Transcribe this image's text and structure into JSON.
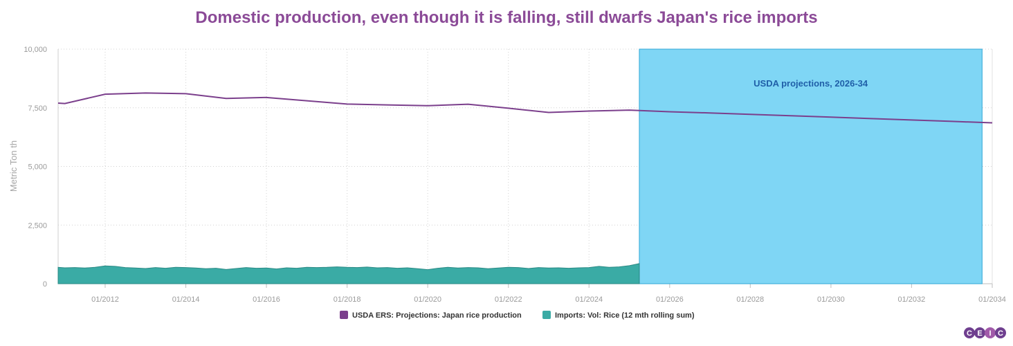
{
  "chart_data": {
    "type": "area",
    "title": "Domestic production, even though it is falling, still dwarfs Japan's rice imports",
    "ylabel": "Metric Ton th",
    "xlabel": "",
    "xlim": [
      "2010-11-01",
      "2034-01-01"
    ],
    "ylim": [
      0,
      10000
    ],
    "y_ticks": [
      0,
      2500,
      5000,
      7500,
      10000
    ],
    "y_tick_labels": [
      "0",
      "2,500",
      "5,000",
      "7,500",
      "10,000"
    ],
    "x_ticks": [
      "2012-01-01",
      "2014-01-01",
      "2016-01-01",
      "2018-01-01",
      "2020-01-01",
      "2022-01-01",
      "2024-01-01",
      "2026-01-01",
      "2028-01-01",
      "2030-01-01",
      "2032-01-01",
      "2034-01-01"
    ],
    "x_tick_labels": [
      "01/2012",
      "01/2014",
      "01/2016",
      "01/2018",
      "01/2020",
      "01/2022",
      "01/2024",
      "01/2026",
      "01/2028",
      "01/2030",
      "01/2032",
      "01/2034"
    ],
    "grid": true,
    "legend_placement": "bottom",
    "series": [
      {
        "name": "USDA ERS: Projections: Japan rice production",
        "type": "line",
        "color": "#7b3f8c",
        "x": [
          "2010-11-01",
          "2011-01-01",
          "2012-01-01",
          "2013-01-01",
          "2014-01-01",
          "2015-01-01",
          "2016-01-01",
          "2017-01-01",
          "2018-01-01",
          "2019-01-01",
          "2020-01-01",
          "2021-01-01",
          "2022-01-01",
          "2023-01-01",
          "2024-01-01",
          "2025-01-01",
          "2026-01-01",
          "2027-01-01",
          "2028-01-01",
          "2029-01-01",
          "2030-01-01",
          "2031-01-01",
          "2032-01-01",
          "2033-01-01",
          "2034-01-01"
        ],
        "values": [
          7700,
          7680,
          8080,
          8130,
          8100,
          7900,
          7940,
          7800,
          7660,
          7620,
          7590,
          7650,
          7480,
          7300,
          7360,
          7400,
          7330,
          7280,
          7220,
          7160,
          7100,
          7040,
          6980,
          6920,
          6860
        ]
      },
      {
        "name": "Imports: Vol: Rice (12 mth rolling sum)",
        "type": "area",
        "color": "#3aaba5",
        "x": [
          "2010-11-01",
          "2011-01-01",
          "2011-04-01",
          "2011-07-01",
          "2011-10-01",
          "2012-01-01",
          "2012-04-01",
          "2012-07-01",
          "2012-10-01",
          "2013-01-01",
          "2013-04-01",
          "2013-07-01",
          "2013-10-01",
          "2014-01-01",
          "2014-04-01",
          "2014-07-01",
          "2014-10-01",
          "2015-01-01",
          "2015-04-01",
          "2015-07-01",
          "2015-10-01",
          "2016-01-01",
          "2016-04-01",
          "2016-07-01",
          "2016-10-01",
          "2017-01-01",
          "2017-04-01",
          "2017-07-01",
          "2017-10-01",
          "2018-01-01",
          "2018-04-01",
          "2018-07-01",
          "2018-10-01",
          "2019-01-01",
          "2019-04-01",
          "2019-07-01",
          "2019-10-01",
          "2020-01-01",
          "2020-04-01",
          "2020-07-01",
          "2020-10-01",
          "2021-01-01",
          "2021-04-01",
          "2021-07-01",
          "2021-10-01",
          "2022-01-01",
          "2022-04-01",
          "2022-07-01",
          "2022-10-01",
          "2023-01-01",
          "2023-04-01",
          "2023-07-01",
          "2023-10-01",
          "2024-01-01",
          "2024-04-01",
          "2024-07-01",
          "2024-10-01",
          "2025-01-01",
          "2025-04-01"
        ],
        "values": [
          700,
          680,
          690,
          670,
          700,
          760,
          740,
          690,
          670,
          650,
          690,
          660,
          700,
          690,
          670,
          640,
          660,
          610,
          650,
          690,
          660,
          670,
          630,
          680,
          660,
          700,
          690,
          700,
          720,
          700,
          690,
          710,
          680,
          690,
          660,
          680,
          640,
          600,
          660,
          700,
          670,
          690,
          680,
          640,
          670,
          700,
          690,
          650,
          690,
          670,
          680,
          660,
          680,
          690,
          740,
          700,
          720,
          770,
          860
        ]
      }
    ],
    "annotations": [
      {
        "text": "USDA projections, 2026-34",
        "x_start": "2025-04-01",
        "x_end": "2033-10-01",
        "color": "#7fd6f5"
      }
    ]
  },
  "branding": {
    "logo_letters": [
      "C",
      "E",
      "I",
      "C"
    ]
  }
}
